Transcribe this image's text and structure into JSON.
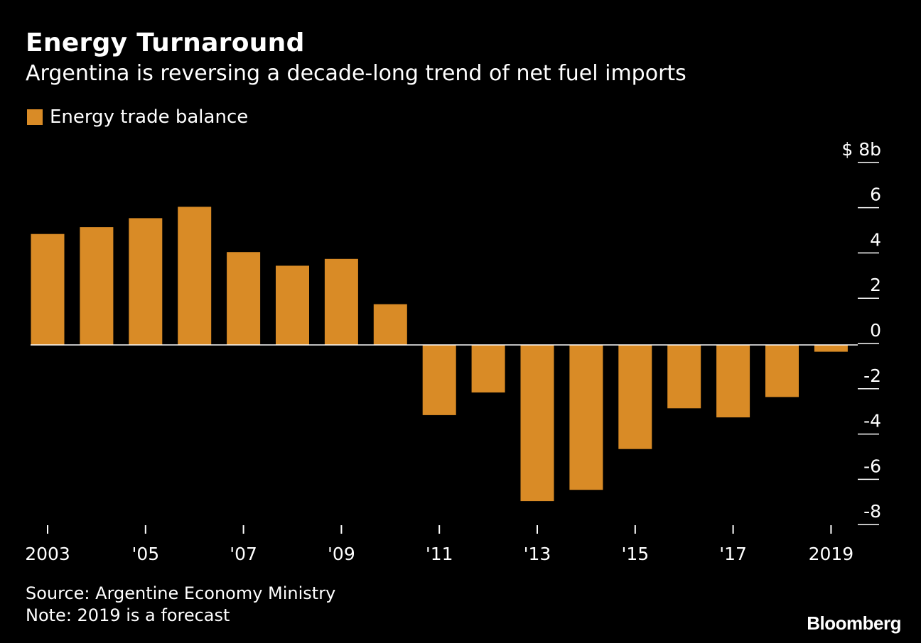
{
  "chart_data": {
    "type": "bar",
    "title": "Energy Turnaround",
    "subtitle": "Argentina is reversing a decade-long trend of net fuel imports",
    "unit_label": "$ 8b",
    "categories": [
      "2003",
      "2004",
      "2005",
      "2006",
      "2007",
      "2008",
      "2009",
      "2010",
      "2011",
      "2012",
      "2013",
      "2014",
      "2015",
      "2016",
      "2017",
      "2018",
      "2019"
    ],
    "x_tick_labels": [
      {
        "index": 0,
        "label": "2003"
      },
      {
        "index": 2,
        "label": "'05"
      },
      {
        "index": 4,
        "label": "'07"
      },
      {
        "index": 6,
        "label": "'09"
      },
      {
        "index": 8,
        "label": "'11"
      },
      {
        "index": 10,
        "label": "'13"
      },
      {
        "index": 12,
        "label": "'15"
      },
      {
        "index": 14,
        "label": "'17"
      },
      {
        "index": 16,
        "label": "2019"
      }
    ],
    "series": [
      {
        "name": "Energy trade balance",
        "color": "#D98B26",
        "values": [
          4.9,
          5.2,
          5.6,
          6.1,
          4.1,
          3.5,
          3.8,
          1.8,
          -3.1,
          -2.1,
          -6.9,
          -6.4,
          -4.6,
          -2.8,
          -3.2,
          -2.3,
          -0.3
        ]
      }
    ],
    "ylim": [
      -8,
      8
    ],
    "yticks": [
      -8,
      -6,
      -4,
      -2,
      0,
      2,
      4,
      6,
      8
    ],
    "y_tick_labels": [
      "-8",
      "-6",
      "-4",
      "-2",
      "0",
      "2",
      "4",
      "6",
      "$ 8b"
    ],
    "legend": "top-left",
    "grid": false
  },
  "legend": {
    "label": "Energy trade balance",
    "color": "#D98B26"
  },
  "footer": {
    "source": "Source: Argentine Economy Ministry",
    "note": "Note: 2019 is a forecast"
  },
  "brand": "Bloomberg"
}
